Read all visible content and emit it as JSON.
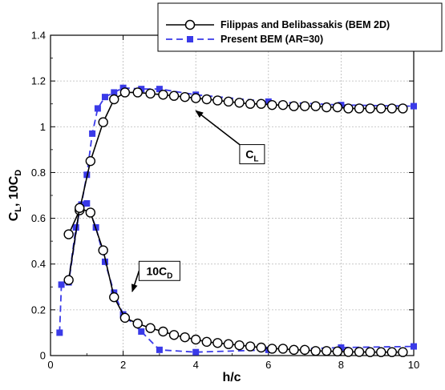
{
  "chart_data": {
    "type": "line",
    "title": "",
    "xlabel": "h/c",
    "ylabel": {
      "base": "C",
      "sub1": "L",
      "mid": ", 10C",
      "sub2": "D"
    },
    "xlim": [
      0,
      10
    ],
    "ylim": [
      0,
      1.4
    ],
    "xticks": [
      "0",
      "2",
      "4",
      "6",
      "8",
      "10"
    ],
    "yticks": [
      "0",
      "0.2",
      "0.4",
      "0.6",
      "0.8",
      "1",
      "1.2",
      "1.4"
    ],
    "grid": true,
    "legend_position": "top-right",
    "series": [
      {
        "name": "Filippas and Belibassakis (BEM 2D)",
        "quantity": "CL",
        "color": "#000000",
        "marker": "circle-open",
        "line": "solid",
        "x": [
          0.5,
          0.8,
          1.1,
          1.45,
          1.75,
          2.05,
          2.4,
          2.75,
          3.1,
          3.4,
          3.7,
          4.0,
          4.3,
          4.6,
          4.9,
          5.2,
          5.5,
          5.8,
          6.1,
          6.4,
          6.7,
          7.0,
          7.3,
          7.6,
          7.9,
          8.2,
          8.5,
          8.8,
          9.1,
          9.4,
          9.7
        ],
        "y": [
          0.53,
          0.635,
          0.85,
          1.02,
          1.12,
          1.15,
          1.15,
          1.145,
          1.14,
          1.135,
          1.13,
          1.125,
          1.12,
          1.115,
          1.11,
          1.105,
          1.1,
          1.1,
          1.095,
          1.095,
          1.09,
          1.09,
          1.09,
          1.085,
          1.085,
          1.08,
          1.08,
          1.08,
          1.08,
          1.08,
          1.08
        ]
      },
      {
        "name": "Filippas and Belibassakis (BEM 2D)",
        "quantity": "10CD",
        "color": "#000000",
        "marker": "circle-open",
        "line": "solid",
        "x": [
          0.5,
          0.8,
          1.1,
          1.45,
          1.75,
          2.05,
          2.4,
          2.75,
          3.1,
          3.4,
          3.7,
          4.0,
          4.3,
          4.6,
          4.9,
          5.2,
          5.5,
          5.8,
          6.1,
          6.4,
          6.7,
          7.0,
          7.3,
          7.6,
          7.9,
          8.2,
          8.5,
          8.8,
          9.1,
          9.4,
          9.7
        ],
        "y": [
          0.33,
          0.645,
          0.625,
          0.46,
          0.255,
          0.165,
          0.14,
          0.12,
          0.105,
          0.09,
          0.08,
          0.07,
          0.06,
          0.055,
          0.05,
          0.045,
          0.04,
          0.035,
          0.03,
          0.03,
          0.025,
          0.025,
          0.02,
          0.02,
          0.018,
          0.016,
          0.016,
          0.015,
          0.015,
          0.015,
          0.015
        ]
      },
      {
        "name": "Present BEM (AR=30)",
        "quantity": "CL",
        "color": "#3a3ae8",
        "marker": "square-filled",
        "line": "dashed",
        "x": [
          0.5,
          0.7,
          0.85,
          1.0,
          1.15,
          1.3,
          1.5,
          1.75,
          2.0,
          2.5,
          3.0,
          4.0,
          6.0,
          8.0,
          10.0
        ],
        "y": [
          0.33,
          0.56,
          0.66,
          0.79,
          0.97,
          1.08,
          1.13,
          1.15,
          1.17,
          1.165,
          1.165,
          1.14,
          1.11,
          1.095,
          1.09
        ]
      },
      {
        "name": "Present BEM (AR=30)",
        "quantity": "10CD",
        "color": "#3a3ae8",
        "marker": "square-filled",
        "line": "dashed",
        "x": [
          0.25,
          0.3,
          0.5,
          0.8,
          1.0,
          1.25,
          1.5,
          1.75,
          2.0,
          2.5,
          3.0,
          4.0,
          6.0,
          8.0,
          10.0
        ],
        "y": [
          0.1,
          0.31,
          0.32,
          0.64,
          0.665,
          0.56,
          0.41,
          0.275,
          0.18,
          0.105,
          0.025,
          0.015,
          0.025,
          0.035,
          0.04
        ]
      }
    ],
    "annotations": [
      {
        "base": "C",
        "sub": "L",
        "points_to": {
          "x": 4.0,
          "y": 1.07
        },
        "label_at": {
          "x": 5.55,
          "y": 0.88
        }
      },
      {
        "base": "10C",
        "sub": "D",
        "points_to": {
          "x": 2.25,
          "y": 0.28
        },
        "label_at": {
          "x": 3.0,
          "y": 0.37
        }
      }
    ]
  }
}
